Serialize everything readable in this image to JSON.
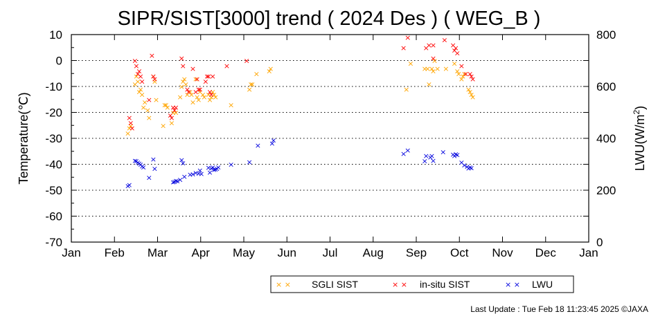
{
  "chart_data": {
    "type": "scatter",
    "title": "SIPR/SIST[3000] trend ( 2024 Des ) ( WEG_B )",
    "ylabel": "Temperature(℃)",
    "y2label_prefix": "LWU(W/m",
    "y2label_sup": "2",
    "y2label_suffix": ")",
    "x_ticks": [
      "Jan",
      "Feb",
      "Mar",
      "Apr",
      "May",
      "Jun",
      "Jul",
      "Aug",
      "Sep",
      "Oct",
      "Nov",
      "Dec",
      "Jan"
    ],
    "xlim_days": [
      0,
      366
    ],
    "ylim": [
      -70,
      10
    ],
    "y_ticks": [
      10,
      0,
      -10,
      -20,
      -30,
      -40,
      -50,
      -60,
      -70
    ],
    "y2lim": [
      0,
      800
    ],
    "y2_ticks": [
      800,
      600,
      400,
      200,
      0
    ],
    "grid": "horizontal-dotted",
    "legend_position": "bottom-right",
    "marker": "×",
    "series": [
      {
        "name": "SGLI SIST",
        "axis": "left",
        "color": "#ffa500",
        "points": [
          [
            40,
            -28
          ],
          [
            41,
            -26
          ],
          [
            42,
            -25
          ],
          [
            45,
            -9
          ],
          [
            46,
            -6
          ],
          [
            47,
            -8
          ],
          [
            48,
            -12
          ],
          [
            49,
            -11
          ],
          [
            50,
            -13
          ],
          [
            51,
            -18
          ],
          [
            52,
            -16
          ],
          [
            54,
            -19
          ],
          [
            55,
            -22
          ],
          [
            58,
            -6
          ],
          [
            59,
            -8
          ],
          [
            60,
            -15
          ],
          [
            65,
            -25
          ],
          [
            66,
            -17
          ],
          [
            67,
            -17
          ],
          [
            68,
            -18
          ],
          [
            71,
            -24
          ],
          [
            72,
            -20
          ],
          [
            74,
            -20
          ],
          [
            77,
            -14
          ],
          [
            78,
            -10
          ],
          [
            79,
            -8
          ],
          [
            80,
            -7
          ],
          [
            81,
            -9
          ],
          [
            82,
            -13
          ],
          [
            84,
            -12
          ],
          [
            85,
            -13
          ],
          [
            86,
            -16
          ],
          [
            88,
            -7
          ],
          [
            89,
            -14
          ],
          [
            90,
            -15
          ],
          [
            91,
            -12
          ],
          [
            93,
            -13
          ],
          [
            94,
            -14
          ],
          [
            97,
            -13
          ],
          [
            98,
            -15
          ],
          [
            99,
            -14
          ],
          [
            100,
            -12
          ],
          [
            101,
            -13
          ],
          [
            102,
            -14
          ],
          [
            113,
            -17
          ],
          [
            126,
            -11
          ],
          [
            127,
            -9
          ],
          [
            128,
            -9
          ],
          [
            131,
            -5
          ],
          [
            140,
            -4
          ],
          [
            141,
            -3
          ],
          [
            237,
            -11
          ],
          [
            240,
            -1
          ],
          [
            250,
            -3
          ],
          [
            252,
            -3
          ],
          [
            253,
            -9
          ],
          [
            255,
            -3
          ],
          [
            256,
            -4
          ],
          [
            257,
            0
          ],
          [
            259,
            -3
          ],
          [
            265,
            -3
          ],
          [
            271,
            -1
          ],
          [
            273,
            -4
          ],
          [
            274,
            -5
          ],
          [
            276,
            -7
          ],
          [
            277,
            -6
          ],
          [
            278,
            -5
          ],
          [
            281,
            -11
          ],
          [
            282,
            -12
          ],
          [
            283,
            -13
          ],
          [
            284,
            -14
          ]
        ]
      },
      {
        "name": "in-situ SIST",
        "axis": "left",
        "color": "#ff0000",
        "points": [
          [
            41,
            -22
          ],
          [
            42,
            -24
          ],
          [
            43,
            -26
          ],
          [
            45,
            0
          ],
          [
            46,
            -2
          ],
          [
            47,
            -5
          ],
          [
            48,
            -4
          ],
          [
            49,
            -6
          ],
          [
            50,
            -8
          ],
          [
            55,
            -15
          ],
          [
            57,
            2
          ],
          [
            58,
            -6
          ],
          [
            59,
            -7
          ],
          [
            70,
            -21
          ],
          [
            71,
            -22
          ],
          [
            72,
            -18
          ],
          [
            73,
            -19
          ],
          [
            74,
            -18
          ],
          [
            78,
            1
          ],
          [
            79,
            -2
          ],
          [
            82,
            -11
          ],
          [
            83,
            -12
          ],
          [
            86,
            -3
          ],
          [
            88,
            -12
          ],
          [
            89,
            -7
          ],
          [
            90,
            -11
          ],
          [
            91,
            -11
          ],
          [
            95,
            -8
          ],
          [
            96,
            -6
          ],
          [
            97,
            -6
          ],
          [
            98,
            -12
          ],
          [
            99,
            -13
          ],
          [
            100,
            -6
          ],
          [
            110,
            -2
          ],
          [
            124,
            0
          ],
          [
            235,
            5
          ],
          [
            238,
            9
          ],
          [
            251,
            5
          ],
          [
            253,
            6
          ],
          [
            256,
            1
          ],
          [
            256,
            6
          ],
          [
            264,
            8
          ],
          [
            270,
            6
          ],
          [
            271,
            4
          ],
          [
            272,
            5
          ],
          [
            273,
            3
          ],
          [
            276,
            -2
          ],
          [
            279,
            -5
          ],
          [
            282,
            -5
          ],
          [
            283,
            -6
          ],
          [
            284,
            -7
          ]
        ]
      },
      {
        "name": "LWU",
        "axis": "right",
        "color": "#0000dd",
        "points": [
          [
            40,
            218
          ],
          [
            41,
            222
          ],
          [
            45,
            315
          ],
          [
            46,
            313
          ],
          [
            47,
            308
          ],
          [
            48,
            304
          ],
          [
            49,
            300
          ],
          [
            50,
            293
          ],
          [
            51,
            290
          ],
          [
            55,
            250
          ],
          [
            58,
            320
          ],
          [
            59,
            284
          ],
          [
            72,
            232
          ],
          [
            73,
            233
          ],
          [
            74,
            238
          ],
          [
            75,
            236
          ],
          [
            77,
            242
          ],
          [
            78,
            318
          ],
          [
            79,
            305
          ],
          [
            80,
            254
          ],
          [
            84,
            262
          ],
          [
            86,
            263
          ],
          [
            88,
            268
          ],
          [
            90,
            265
          ],
          [
            91,
            278
          ],
          [
            92,
            264
          ],
          [
            97,
            288
          ],
          [
            98,
            270
          ],
          [
            99,
            285
          ],
          [
            100,
            290
          ],
          [
            101,
            280
          ],
          [
            102,
            282
          ],
          [
            103,
            284
          ],
          [
            104,
            290
          ],
          [
            113,
            300
          ],
          [
            126,
            310
          ],
          [
            132,
            373
          ],
          [
            142,
            382
          ],
          [
            143,
            393
          ],
          [
            235,
            342
          ],
          [
            238,
            355
          ],
          [
            250,
            313
          ],
          [
            251,
            333
          ],
          [
            254,
            328
          ],
          [
            255,
            333
          ],
          [
            256,
            315
          ],
          [
            263,
            348
          ],
          [
            270,
            339
          ],
          [
            271,
            334
          ],
          [
            272,
            340
          ],
          [
            273,
            337
          ],
          [
            276,
            308
          ],
          [
            278,
            297
          ],
          [
            280,
            292
          ],
          [
            281,
            286
          ],
          [
            282,
            290
          ],
          [
            283,
            287
          ]
        ]
      }
    ]
  },
  "footer": {
    "last_update": "Last Update : Tue Feb 18 11:23:45 2025 ©JAXA"
  }
}
